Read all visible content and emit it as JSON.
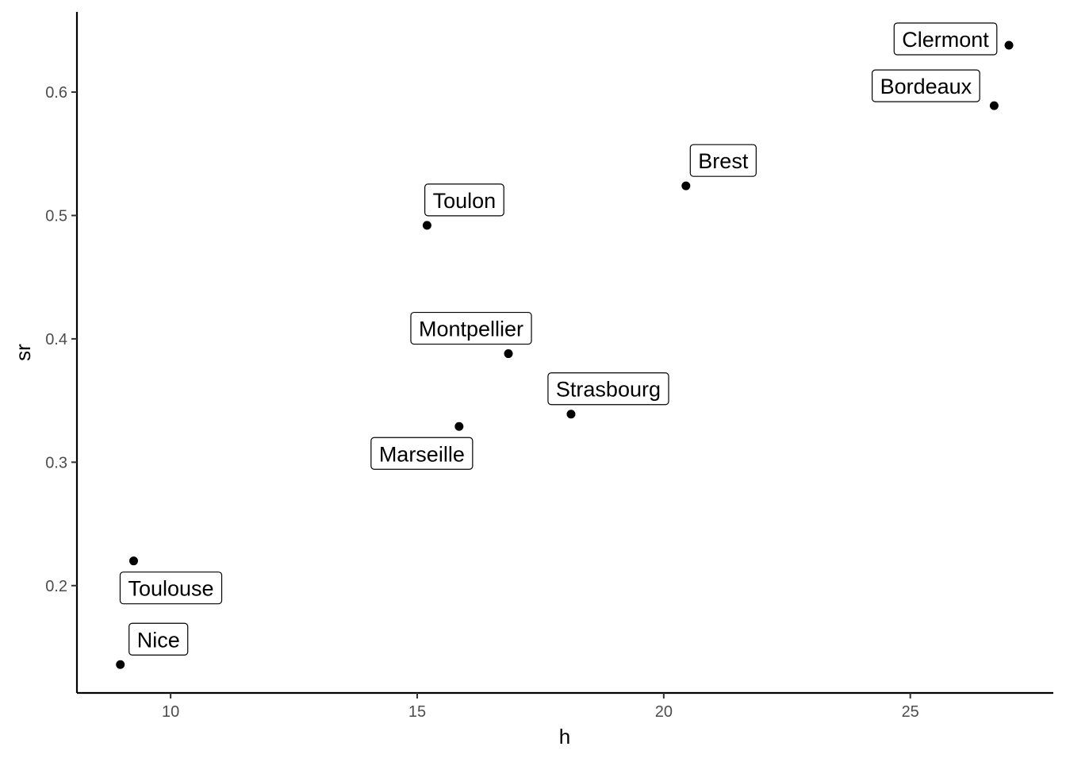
{
  "chart_data": {
    "type": "scatter",
    "xlabel": "h",
    "ylabel": "sr",
    "xlim": [
      8.1,
      27.9
    ],
    "ylim": [
      0.113,
      0.665
    ],
    "xticks": [
      10,
      15,
      20,
      25
    ],
    "yticks": [
      0.2,
      0.3,
      0.4,
      0.5,
      0.6
    ],
    "xtick_labels": [
      "10",
      "15",
      "20",
      "25"
    ],
    "ytick_labels": [
      "0.2",
      "0.3",
      "0.4",
      "0.5",
      "0.6"
    ],
    "grid": false,
    "point_color": "#000000",
    "points": [
      {
        "label": "Clermont",
        "x": 27.0,
        "y": 0.638
      },
      {
        "label": "Bordeaux",
        "x": 26.7,
        "y": 0.589
      },
      {
        "label": "Brest",
        "x": 20.45,
        "y": 0.524
      },
      {
        "label": "Toulon",
        "x": 15.2,
        "y": 0.492
      },
      {
        "label": "Montpellier",
        "x": 16.85,
        "y": 0.388
      },
      {
        "label": "Strasbourg",
        "x": 18.12,
        "y": 0.339
      },
      {
        "label": "Marseille",
        "x": 15.85,
        "y": 0.329
      },
      {
        "label": "Toulouse",
        "x": 9.25,
        "y": 0.22
      },
      {
        "label": "Nice",
        "x": 8.98,
        "y": 0.136
      }
    ]
  }
}
